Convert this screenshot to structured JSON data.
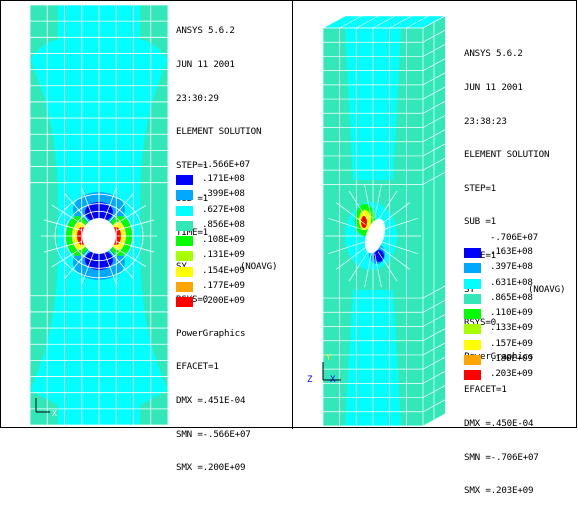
{
  "left_panel": {
    "header": [
      "ANSYS 5.6.2",
      "JUN 11 2001",
      "23:30:29",
      "ELEMENT SOLUTION"
    ],
    "step": "STEP=1",
    "sub": "SUB =1",
    "time": "TIME=1",
    "component": "SY          (NOAVG)",
    "rsys": "RSYS=0",
    "graphics": "PowerGraphics",
    "efacet": "EFACET=1",
    "dmx": "DMX =.451E-04",
    "smn": "SMN =-.566E+07",
    "smx": "SMX =.200E+09",
    "legend_min": "-.566E+07",
    "legend": [
      {
        "value": ".171E+08",
        "color": "#0000ff"
      },
      {
        "value": ".399E+08",
        "color": "#00a8ff"
      },
      {
        "value": ".627E+08",
        "color": "#00ffff"
      },
      {
        "value": ".856E+08",
        "color": "#33e8b8"
      },
      {
        "value": ".108E+09",
        "color": "#00ff00"
      },
      {
        "value": ".131E+09",
        "color": "#a8ff00"
      },
      {
        "value": ".154E+09",
        "color": "#ffff00"
      },
      {
        "value": ".177E+09",
        "color": "#ffa500"
      },
      {
        "value": ".200E+09",
        "color": "#ff0000"
      }
    ],
    "triad_x": "X",
    "triad_y": "Y"
  },
  "right_panel": {
    "header": [
      "ANSYS 5.6.2",
      "JUN 11 2001",
      "23:38:23",
      "ELEMENT SOLUTION"
    ],
    "step": "STEP=1",
    "sub": "SUB =1",
    "time": "TIME=1",
    "component": "SY          (NOAVG)",
    "rsys": "RSYS=0",
    "graphics": "PowerGraphics",
    "efacet": "EFACET=1",
    "dmx": "DMX =.450E-04",
    "smn": "SMN =-.706E+07",
    "smx": "SMX =.203E+09",
    "legend_min": "-.706E+07",
    "legend": [
      {
        "value": ".163E+08",
        "color": "#0000ff"
      },
      {
        "value": ".397E+08",
        "color": "#00a8ff"
      },
      {
        "value": ".631E+08",
        "color": "#00ffff"
      },
      {
        "value": ".865E+08",
        "color": "#33e8b8"
      },
      {
        "value": ".110E+09",
        "color": "#00ff00"
      },
      {
        "value": ".133E+09",
        "color": "#a8ff00"
      },
      {
        "value": ".157E+09",
        "color": "#ffff00"
      },
      {
        "value": ".180E+09",
        "color": "#ffa500"
      },
      {
        "value": ".203E+09",
        "color": "#ff0000"
      }
    ],
    "triad_x": "X",
    "triad_y": "Y",
    "triad_z": "Z"
  },
  "colors": {
    "mesh_line": "#ffffff",
    "plate_dominant": "#00ffff",
    "plate_secondary": "#33e8b8",
    "hole": "#ffffff"
  }
}
